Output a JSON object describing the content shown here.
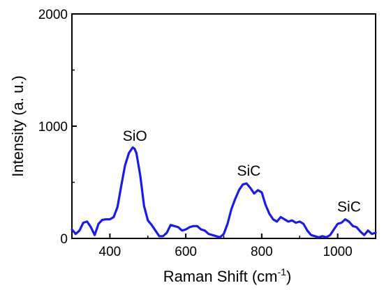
{
  "chart_data": {
    "type": "line",
    "title": "",
    "xlabel": "Raman Shift (cm",
    "xlabel_sup": "-1",
    "xlabel_end": ")",
    "ylabel": "Intensity (a. u.)",
    "xlim": [
      300,
      1100
    ],
    "ylim": [
      0,
      2000
    ],
    "x_ticks": [
      400,
      600,
      800,
      1000
    ],
    "x_tick_labels": [
      "400",
      "600",
      "800",
      "1000"
    ],
    "y_ticks": [
      0,
      1000,
      2000
    ],
    "y_tick_labels": [
      "0",
      "1000",
      "2000"
    ],
    "grid": false,
    "line_color": "#1a1aeb",
    "series": [
      {
        "x": [
          300,
          310,
          320,
          330,
          340,
          350,
          360,
          370,
          380,
          390,
          400,
          410,
          420,
          430,
          440,
          450,
          460,
          465,
          470,
          480,
          490,
          500,
          510,
          520,
          530,
          540,
          550,
          560,
          570,
          580,
          590,
          600,
          610,
          620,
          630,
          640,
          650,
          660,
          670,
          680,
          690,
          700,
          710,
          720,
          730,
          740,
          750,
          760,
          770,
          780,
          790,
          800,
          810,
          820,
          830,
          840,
          850,
          860,
          870,
          880,
          890,
          900,
          910,
          920,
          930,
          940,
          950,
          960,
          970,
          980,
          990,
          1000,
          1010,
          1020,
          1030,
          1040,
          1050,
          1060,
          1070,
          1080,
          1090,
          1100
        ],
        "y": [
          80,
          40,
          70,
          140,
          150,
          100,
          30,
          130,
          165,
          170,
          170,
          190,
          280,
          470,
          650,
          760,
          810,
          800,
          760,
          560,
          290,
          160,
          120,
          70,
          20,
          20,
          50,
          120,
          110,
          100,
          70,
          80,
          100,
          110,
          110,
          80,
          70,
          40,
          30,
          20,
          10,
          40,
          130,
          260,
          350,
          430,
          480,
          490,
          450,
          400,
          430,
          410,
          300,
          220,
          170,
          150,
          190,
          170,
          150,
          160,
          140,
          150,
          130,
          70,
          30,
          20,
          10,
          20,
          10,
          30,
          80,
          130,
          140,
          170,
          150,
          110,
          100,
          60,
          30,
          70,
          40,
          50
        ]
      }
    ],
    "annotations": [
      {
        "text": "SiO",
        "x": 466,
        "y": 870
      },
      {
        "text": "SiC",
        "x": 766,
        "y": 560
      },
      {
        "text": "SiC",
        "x": 1030,
        "y": 240
      }
    ]
  }
}
